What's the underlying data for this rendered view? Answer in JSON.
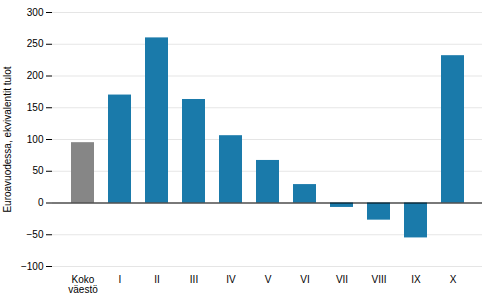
{
  "chart_data": {
    "type": "bar",
    "categories": [
      "Koko\nväestö",
      "I",
      "II",
      "III",
      "IV",
      "V",
      "VI",
      "VII",
      "VIII",
      "IX",
      "X"
    ],
    "values": [
      95,
      170,
      260,
      163,
      106,
      67,
      29,
      -7,
      -27,
      -55,
      232
    ],
    "colors": [
      "#868686",
      "#1a7aaa",
      "#1a7aaa",
      "#1a7aaa",
      "#1a7aaa",
      "#1a7aaa",
      "#1a7aaa",
      "#1a7aaa",
      "#1a7aaa",
      "#1a7aaa",
      "#1a7aaa"
    ],
    "ylabel": "Euroavuodessa, ekvivalentit tulot",
    "ylim": [
      -100,
      300
    ],
    "yticks": [
      -100,
      -50,
      0,
      50,
      100,
      150,
      200,
      250,
      300
    ],
    "grid": true
  }
}
